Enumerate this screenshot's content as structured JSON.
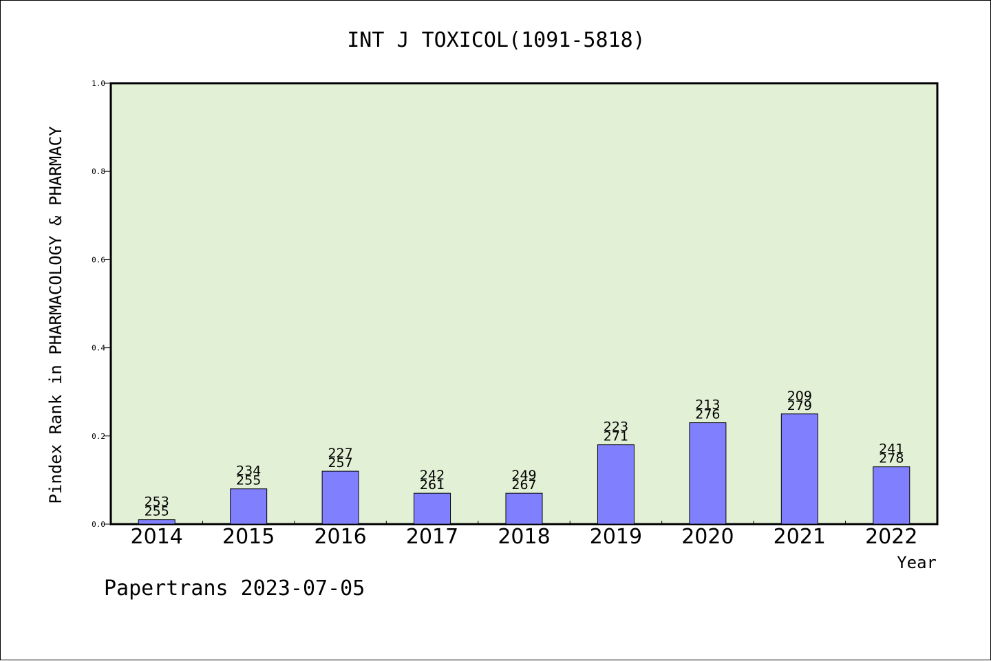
{
  "chart_data": {
    "type": "bar",
    "title": "INT J TOXICOL(1091-5818)",
    "xlabel": "Year",
    "ylabel": "Pindex Rank in PHARMACOLOGY & PHARMACY",
    "ylim": [
      0,
      1.0
    ],
    "yticks": [
      "0.0",
      "0.2",
      "0.4",
      "0.6",
      "0.8",
      "1.0"
    ],
    "grid": false,
    "categories": [
      "2014",
      "2015",
      "2016",
      "2017",
      "2018",
      "2019",
      "2020",
      "2021",
      "2022"
    ],
    "values": [
      0.01,
      0.08,
      0.12,
      0.07,
      0.07,
      0.18,
      0.23,
      0.25,
      0.13
    ],
    "label_top": [
      "253",
      "234",
      "227",
      "242",
      "249",
      "223",
      "213",
      "209",
      "241"
    ],
    "label_bottom": [
      "255",
      "255",
      "257",
      "261",
      "267",
      "271",
      "276",
      "279",
      "278"
    ],
    "colors": {
      "bar": "#8080ff",
      "plot_background": "#e2f0d6",
      "axis": "#000000"
    }
  },
  "footer": {
    "text": "Papertrans 2023-07-05"
  }
}
